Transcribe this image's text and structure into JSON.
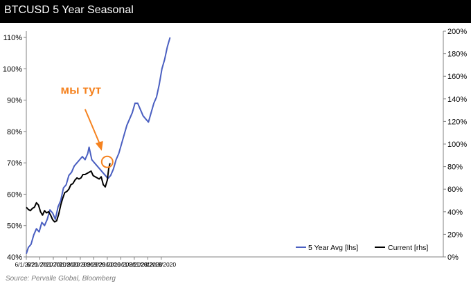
{
  "header": {
    "title": "BTCUSD 5 Year Seasonal"
  },
  "source": "Source: Pervalle Global, Bloomberg",
  "annotation": {
    "text": "мы тут",
    "color": "#f5821f"
  },
  "colors": {
    "avg": "#4a5fc1",
    "current": "#000000",
    "axis": "#808080"
  },
  "chart_data": {
    "type": "line",
    "title": "BTCUSD 5 Year Seasonal",
    "x_ticks": [
      "6/1/2020",
      "6/21/2020",
      "7/11/2020",
      "7/31/2020",
      "8/20/2020",
      "9/9/2020",
      "9/29/2020",
      "10/19/2020",
      "11/8/2020",
      "11/28/2020",
      "12/18/2020"
    ],
    "y_left": {
      "ticks": [
        "40%",
        "50%",
        "60%",
        "70%",
        "80%",
        "90%",
        "100%",
        "110%"
      ],
      "range": [
        40,
        112
      ]
    },
    "y_right": {
      "ticks": [
        "0%",
        "20%",
        "40%",
        "60%",
        "80%",
        "100%",
        "120%",
        "140%",
        "160%",
        "180%",
        "200%"
      ],
      "range": [
        0,
        200
      ]
    },
    "grid": false,
    "legend_position": "bottom-right",
    "series": [
      {
        "name": "5 Year Avg [lhs]",
        "axis": "left",
        "x": [
          "2020-06-01",
          "2020-06-04",
          "2020-06-08",
          "2020-06-12",
          "2020-06-16",
          "2020-06-20",
          "2020-06-24",
          "2020-06-28",
          "2020-07-02",
          "2020-07-06",
          "2020-07-10",
          "2020-07-14",
          "2020-07-18",
          "2020-07-22",
          "2020-07-26",
          "2020-07-30",
          "2020-08-03",
          "2020-08-07",
          "2020-08-11",
          "2020-08-15",
          "2020-08-19",
          "2020-08-23",
          "2020-08-27",
          "2020-08-31",
          "2020-09-02",
          "2020-09-06",
          "2020-09-10",
          "2020-09-14",
          "2020-09-18",
          "2020-09-22",
          "2020-09-26",
          "2020-09-30",
          "2020-10-04",
          "2020-10-08",
          "2020-10-12",
          "2020-10-16",
          "2020-10-20",
          "2020-10-24",
          "2020-10-28",
          "2020-11-01",
          "2020-11-05",
          "2020-11-09",
          "2020-11-13",
          "2020-11-17",
          "2020-11-21",
          "2020-11-25",
          "2020-11-29",
          "2020-12-03",
          "2020-12-07",
          "2020-12-11",
          "2020-12-15",
          "2020-12-19",
          "2020-12-23",
          "2020-12-27",
          "2020-12-31"
        ],
        "values": [
          41,
          43,
          44,
          47,
          49,
          48,
          51,
          50,
          52,
          55,
          54,
          52,
          56,
          58,
          62,
          63,
          66,
          67,
          69,
          70,
          71,
          72,
          71,
          73,
          75,
          71,
          70,
          69,
          68,
          67,
          66,
          65,
          66,
          68,
          71,
          73,
          76,
          79,
          82,
          84,
          86,
          89,
          89,
          87,
          85,
          84,
          83,
          86,
          89,
          91,
          95,
          100,
          103,
          107,
          110
        ]
      },
      {
        "name": "Current [rhs]",
        "axis": "right",
        "x": [
          "2020-06-01",
          "2020-06-04",
          "2020-06-07",
          "2020-06-10",
          "2020-06-13",
          "2020-06-16",
          "2020-06-19",
          "2020-06-22",
          "2020-06-25",
          "2020-06-28",
          "2020-07-01",
          "2020-07-04",
          "2020-07-07",
          "2020-07-10",
          "2020-07-13",
          "2020-07-16",
          "2020-07-19",
          "2020-07-22",
          "2020-07-25",
          "2020-07-28",
          "2020-07-31",
          "2020-08-03",
          "2020-08-06",
          "2020-08-09",
          "2020-08-12",
          "2020-08-15",
          "2020-08-18",
          "2020-08-21",
          "2020-08-24",
          "2020-08-27",
          "2020-08-30",
          "2020-09-02",
          "2020-09-05",
          "2020-09-08",
          "2020-09-11",
          "2020-09-14",
          "2020-09-17",
          "2020-09-20",
          "2020-09-23",
          "2020-09-26",
          "2020-09-29",
          "2020-10-01",
          "2020-10-03"
        ],
        "values": [
          44,
          42,
          41,
          43,
          44,
          48,
          46,
          40,
          37,
          41,
          39,
          40,
          37,
          33,
          31,
          32,
          38,
          46,
          52,
          57,
          58,
          60,
          64,
          65,
          68,
          70,
          69,
          70,
          73,
          73,
          74,
          75,
          76,
          72,
          71,
          70,
          69,
          71,
          64,
          62,
          68,
          78,
          83
        ]
      }
    ]
  }
}
